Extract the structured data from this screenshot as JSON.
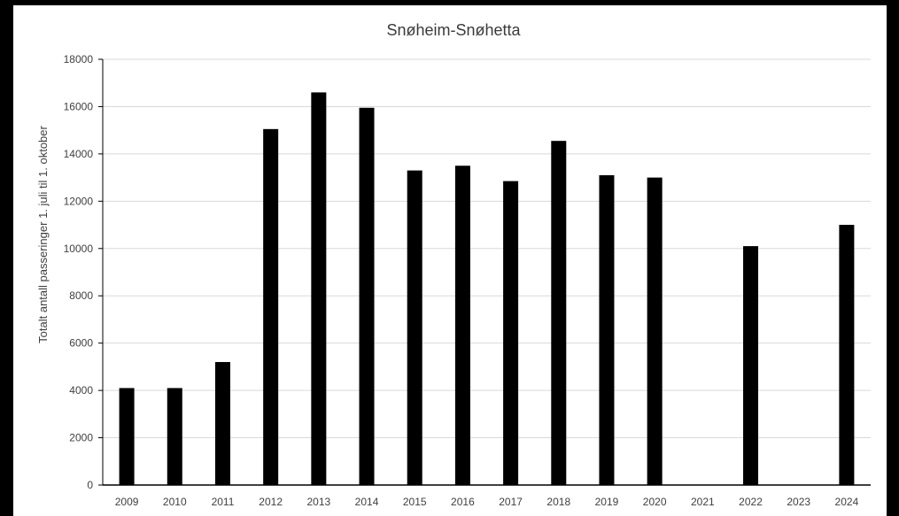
{
  "chart_data": {
    "type": "bar",
    "title": "Snøheim-Snøhetta",
    "xlabel": "",
    "ylabel": "Totalt antall passeringer 1. juli til 1. oktober",
    "ylim": [
      0,
      18000
    ],
    "yticks": [
      0,
      2000,
      4000,
      6000,
      8000,
      10000,
      12000,
      14000,
      16000,
      18000
    ],
    "grid": true,
    "categories": [
      "2009",
      "2010",
      "2011",
      "2012",
      "2013",
      "2014",
      "2015",
      "2016",
      "2017",
      "2018",
      "2019",
      "2020",
      "2021",
      "2022",
      "2023",
      "2024"
    ],
    "values": [
      4100,
      4100,
      5200,
      15050,
      16600,
      15950,
      13300,
      13500,
      12850,
      14550,
      13100,
      13000,
      null,
      10100,
      null,
      11000
    ],
    "bar_color": "#000000",
    "grid_color": "#d9d9d9"
  }
}
